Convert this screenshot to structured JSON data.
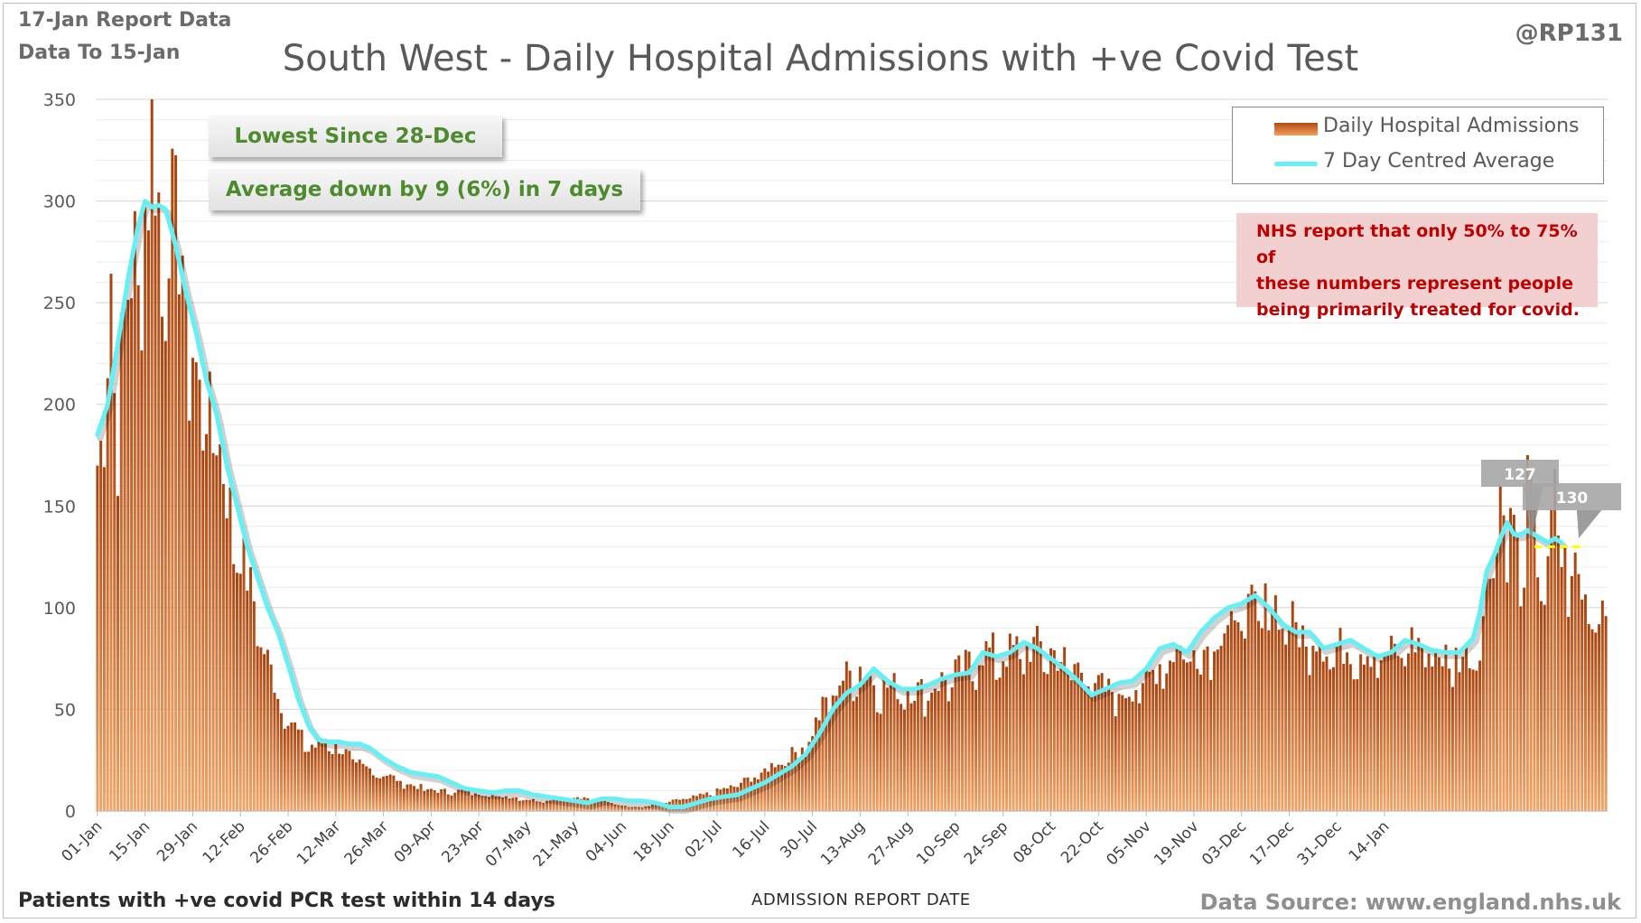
{
  "header": {
    "report_date": "17-Jan Report Data",
    "data_to": "Data To 15-Jan",
    "handle": "@RP131"
  },
  "callouts": {
    "lowest": "Lowest Since 28-Dec",
    "average": "Average down by 9 (6%) in 7 days"
  },
  "note": {
    "line1": "NHS report that only 50% to 75% of",
    "line2": "these numbers represent people",
    "line3": "being primarily treated for covid."
  },
  "footer": {
    "left": "Patients with +ve covid PCR test within 14 days",
    "center": "ADMISSION REPORT DATE",
    "right": "Data Source: www.england.nhs.uk"
  },
  "colors": {
    "bar_dark": "#a8410c",
    "bar_light": "#f3a464",
    "average_line": "#66f0f5",
    "reference_line": "#ffff00",
    "callout_text": "#4e8a2e",
    "note_text": "#c00000",
    "note_bg": "#f2d0d0"
  },
  "chart_data": {
    "type": "bar",
    "title": "South West - Daily Hospital Admissions with +ve Covid Test",
    "xlabel": "ADMISSION REPORT DATE",
    "ylabel": "",
    "ylim": [
      0,
      350
    ],
    "yticks": [
      0,
      50,
      100,
      150,
      200,
      250,
      300,
      350
    ],
    "grid": true,
    "legend_position": "top-right",
    "x_tick_labels": [
      "01-Jan",
      "15-Jan",
      "29-Jan",
      "12-Feb",
      "26-Feb",
      "12-Mar",
      "26-Mar",
      "09-Apr",
      "23-Apr",
      "07-May",
      "21-May",
      "04-Jun",
      "18-Jun",
      "02-Jul",
      "16-Jul",
      "30-Jul",
      "13-Aug",
      "27-Aug",
      "10-Sep",
      "24-Sep",
      "08-Oct",
      "22-Oct",
      "05-Nov",
      "19-Nov",
      "03-Dec",
      "17-Dec",
      "31-Dec",
      "14-Jan"
    ],
    "x_start": "01-Jan",
    "x_end": "15-Jan",
    "series": [
      {
        "name": "Daily Hospital Admissions",
        "type": "bar",
        "key_points": [
          [
            0,
            172
          ],
          [
            2,
            190
          ],
          [
            4,
            271
          ],
          [
            6,
            200
          ],
          [
            8,
            250
          ],
          [
            10,
            270
          ],
          [
            12,
            285
          ],
          [
            14,
            300
          ],
          [
            15,
            310
          ],
          [
            16,
            346
          ],
          [
            17,
            325
          ],
          [
            19,
            280
          ],
          [
            21,
            300
          ],
          [
            23,
            290
          ],
          [
            25,
            280
          ],
          [
            27,
            240
          ],
          [
            29,
            220
          ],
          [
            31,
            190
          ],
          [
            33,
            220
          ],
          [
            35,
            190
          ],
          [
            37,
            170
          ],
          [
            39,
            150
          ],
          [
            41,
            140
          ],
          [
            43,
            125
          ],
          [
            45,
            110
          ],
          [
            47,
            100
          ],
          [
            49,
            80
          ],
          [
            51,
            70
          ],
          [
            53,
            60
          ],
          [
            56,
            48
          ],
          [
            60,
            36
          ],
          [
            64,
            32
          ],
          [
            68,
            36
          ],
          [
            72,
            30
          ],
          [
            78,
            22
          ],
          [
            85,
            18
          ],
          [
            92,
            13
          ],
          [
            100,
            10
          ],
          [
            108,
            10
          ],
          [
            115,
            8
          ],
          [
            122,
            7
          ],
          [
            130,
            5
          ],
          [
            137,
            7
          ],
          [
            144,
            6
          ],
          [
            150,
            5
          ],
          [
            156,
            2
          ],
          [
            160,
            2
          ],
          [
            166,
            4
          ],
          [
            172,
            6
          ],
          [
            178,
            8
          ],
          [
            186,
            12
          ],
          [
            194,
            18
          ],
          [
            200,
            25
          ],
          [
            206,
            30
          ],
          [
            210,
            40
          ],
          [
            214,
            55
          ],
          [
            218,
            65
          ],
          [
            224,
            72
          ],
          [
            230,
            62
          ],
          [
            236,
            62
          ],
          [
            242,
            60
          ],
          [
            248,
            65
          ],
          [
            254,
            70
          ],
          [
            260,
            80
          ],
          [
            266,
            78
          ],
          [
            272,
            82
          ],
          [
            278,
            82
          ],
          [
            284,
            75
          ],
          [
            290,
            70
          ],
          [
            296,
            60
          ],
          [
            302,
            60
          ],
          [
            308,
            65
          ],
          [
            314,
            78
          ],
          [
            320,
            82
          ],
          [
            324,
            78
          ],
          [
            330,
            92
          ],
          [
            336,
            98
          ],
          [
            340,
            100
          ],
          [
            346,
            104
          ],
          [
            350,
            95
          ],
          [
            354,
            88
          ],
          [
            358,
            88
          ],
          [
            362,
            80
          ],
          [
            366,
            82
          ],
          [
            370,
            82
          ],
          [
            374,
            80
          ],
          [
            378,
            78
          ],
          [
            382,
            80
          ],
          [
            386,
            85
          ],
          [
            390,
            82
          ],
          [
            394,
            78
          ],
          [
            398,
            76
          ],
          [
            402,
            78
          ],
          [
            406,
            86
          ],
          [
            408,
            110
          ],
          [
            410,
            132
          ],
          [
            412,
            160
          ],
          [
            414,
            130
          ],
          [
            416,
            150
          ],
          [
            418,
            108
          ],
          [
            420,
            175
          ],
          [
            422,
            140
          ],
          [
            424,
            110
          ],
          [
            426,
            130
          ],
          [
            428,
            155
          ],
          [
            430,
            125
          ],
          [
            432,
            120
          ],
          [
            434,
            126
          ],
          [
            436,
            104
          ]
        ],
        "highlights": [
          {
            "day": 412,
            "value": 160
          },
          {
            "day": 420,
            "value": 175
          },
          {
            "day": 436,
            "value": 104
          }
        ]
      },
      {
        "name": "7 Day Centred Average",
        "type": "line",
        "key_points": [
          [
            0,
            185
          ],
          [
            3,
            200
          ],
          [
            6,
            230
          ],
          [
            9,
            262
          ],
          [
            12,
            288
          ],
          [
            14,
            300
          ],
          [
            16,
            297
          ],
          [
            18,
            298
          ],
          [
            20,
            296
          ],
          [
            23,
            278
          ],
          [
            26,
            255
          ],
          [
            29,
            235
          ],
          [
            32,
            212
          ],
          [
            35,
            195
          ],
          [
            38,
            170
          ],
          [
            41,
            150
          ],
          [
            44,
            130
          ],
          [
            47,
            115
          ],
          [
            50,
            100
          ],
          [
            53,
            88
          ],
          [
            56,
            72
          ],
          [
            59,
            55
          ],
          [
            62,
            42
          ],
          [
            65,
            35
          ],
          [
            68,
            34
          ],
          [
            71,
            34
          ],
          [
            74,
            33
          ],
          [
            77,
            33
          ],
          [
            80,
            31
          ],
          [
            84,
            26
          ],
          [
            88,
            22
          ],
          [
            92,
            19
          ],
          [
            96,
            18
          ],
          [
            100,
            17
          ],
          [
            104,
            14
          ],
          [
            108,
            11
          ],
          [
            112,
            10
          ],
          [
            116,
            9
          ],
          [
            120,
            10
          ],
          [
            124,
            10
          ],
          [
            128,
            8
          ],
          [
            132,
            7
          ],
          [
            136,
            6
          ],
          [
            140,
            5
          ],
          [
            144,
            4
          ],
          [
            148,
            6
          ],
          [
            152,
            6
          ],
          [
            156,
            5
          ],
          [
            160,
            5
          ],
          [
            164,
            4
          ],
          [
            168,
            2
          ],
          [
            172,
            2
          ],
          [
            176,
            4
          ],
          [
            180,
            6
          ],
          [
            184,
            7
          ],
          [
            188,
            8
          ],
          [
            192,
            11
          ],
          [
            196,
            14
          ],
          [
            200,
            18
          ],
          [
            204,
            22
          ],
          [
            208,
            28
          ],
          [
            212,
            38
          ],
          [
            216,
            50
          ],
          [
            220,
            58
          ],
          [
            224,
            62
          ],
          [
            228,
            70
          ],
          [
            232,
            64
          ],
          [
            236,
            60
          ],
          [
            240,
            60
          ],
          [
            244,
            62
          ],
          [
            248,
            65
          ],
          [
            252,
            67
          ],
          [
            256,
            68
          ],
          [
            260,
            78
          ],
          [
            264,
            76
          ],
          [
            268,
            78
          ],
          [
            272,
            83
          ],
          [
            276,
            80
          ],
          [
            280,
            75
          ],
          [
            284,
            70
          ],
          [
            288,
            64
          ],
          [
            292,
            57
          ],
          [
            296,
            60
          ],
          [
            300,
            63
          ],
          [
            304,
            64
          ],
          [
            308,
            70
          ],
          [
            312,
            80
          ],
          [
            316,
            82
          ],
          [
            320,
            78
          ],
          [
            324,
            88
          ],
          [
            328,
            95
          ],
          [
            332,
            100
          ],
          [
            336,
            102
          ],
          [
            340,
            106
          ],
          [
            344,
            100
          ],
          [
            348,
            92
          ],
          [
            352,
            88
          ],
          [
            356,
            88
          ],
          [
            360,
            80
          ],
          [
            364,
            82
          ],
          [
            368,
            84
          ],
          [
            372,
            80
          ],
          [
            376,
            76
          ],
          [
            380,
            78
          ],
          [
            384,
            84
          ],
          [
            388,
            82
          ],
          [
            392,
            79
          ],
          [
            396,
            78
          ],
          [
            400,
            78
          ],
          [
            404,
            85
          ],
          [
            406,
            98
          ],
          [
            408,
            118
          ],
          [
            410,
            125
          ],
          [
            412,
            134
          ],
          [
            414,
            142
          ],
          [
            416,
            136
          ],
          [
            418,
            136
          ],
          [
            420,
            138
          ],
          [
            422,
            136
          ],
          [
            424,
            134
          ],
          [
            426,
            132
          ],
          [
            428,
            134
          ],
          [
            430,
            132
          ]
        ]
      }
    ],
    "annotations": [
      {
        "label": "127",
        "value": 127
      },
      {
        "label": "130",
        "value": 130
      }
    ],
    "reference_line": {
      "value": 130,
      "from": "28-Dec",
      "to": "12-Jan"
    }
  }
}
